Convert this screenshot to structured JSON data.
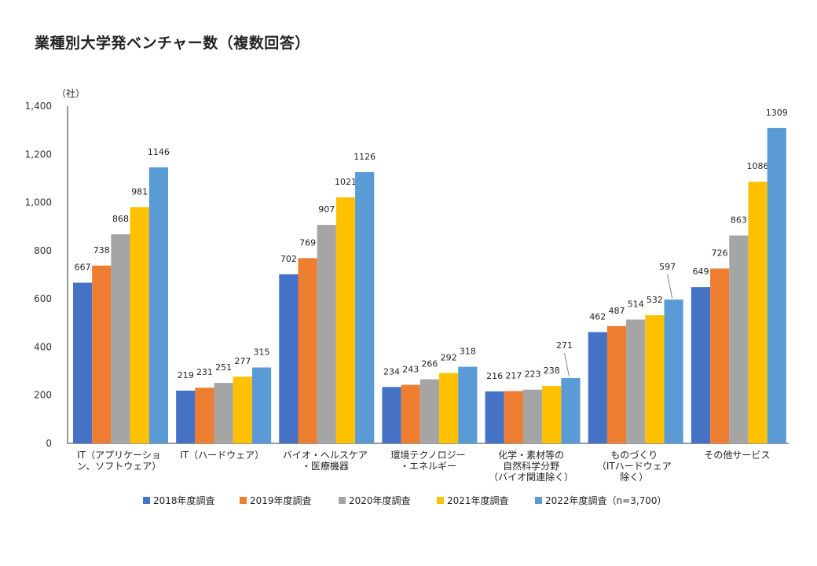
{
  "title": "業種別大学発ベンチャー数（複数回答）",
  "unit": "（社）",
  "colors": [
    "#4472c4",
    "#ed7d31",
    "#a5a5a5",
    "#ffc000",
    "#5b9bd5"
  ],
  "chart_data": {
    "type": "bar",
    "title": "業種別大学発ベンチャー数（複数回答）",
    "ylabel": "（社）",
    "ylim": [
      0,
      1400
    ],
    "yticks": [
      0,
      200,
      400,
      600,
      800,
      1000,
      1200,
      1400
    ],
    "ytick_labels": [
      "0",
      "200",
      "400",
      "600",
      "800",
      "1,000",
      "1,200",
      "1,400"
    ],
    "grid": false,
    "legend_position": "bottom",
    "categories": [
      [
        "IT（アプリケーショ",
        "ン、ソフトウェア）"
      ],
      [
        "IT（ハードウェア）"
      ],
      [
        "バイオ・ヘルスケア",
        "・医療機器"
      ],
      [
        "環境テクノロジー",
        "・エネルギー"
      ],
      [
        "化学・素材等の",
        "自然科学分野",
        "（バイオ関連除く）"
      ],
      [
        "ものづくり",
        "（ITハードウェア",
        "除く）"
      ],
      [
        "その他サービス"
      ]
    ],
    "series": [
      {
        "name": "2018年度調査",
        "values": [
          667,
          219,
          702,
          234,
          216,
          462,
          649
        ]
      },
      {
        "name": "2019年度調査",
        "values": [
          738,
          231,
          769,
          243,
          217,
          487,
          726
        ]
      },
      {
        "name": "2020年度調査",
        "values": [
          868,
          251,
          907,
          266,
          223,
          514,
          863
        ]
      },
      {
        "name": "2021年度調査",
        "values": [
          981,
          277,
          1021,
          292,
          238,
          532,
          1086
        ]
      },
      {
        "name": "2022年度調査（n=3,700）",
        "values": [
          1146,
          315,
          1126,
          318,
          271,
          597,
          1309
        ]
      }
    ]
  }
}
